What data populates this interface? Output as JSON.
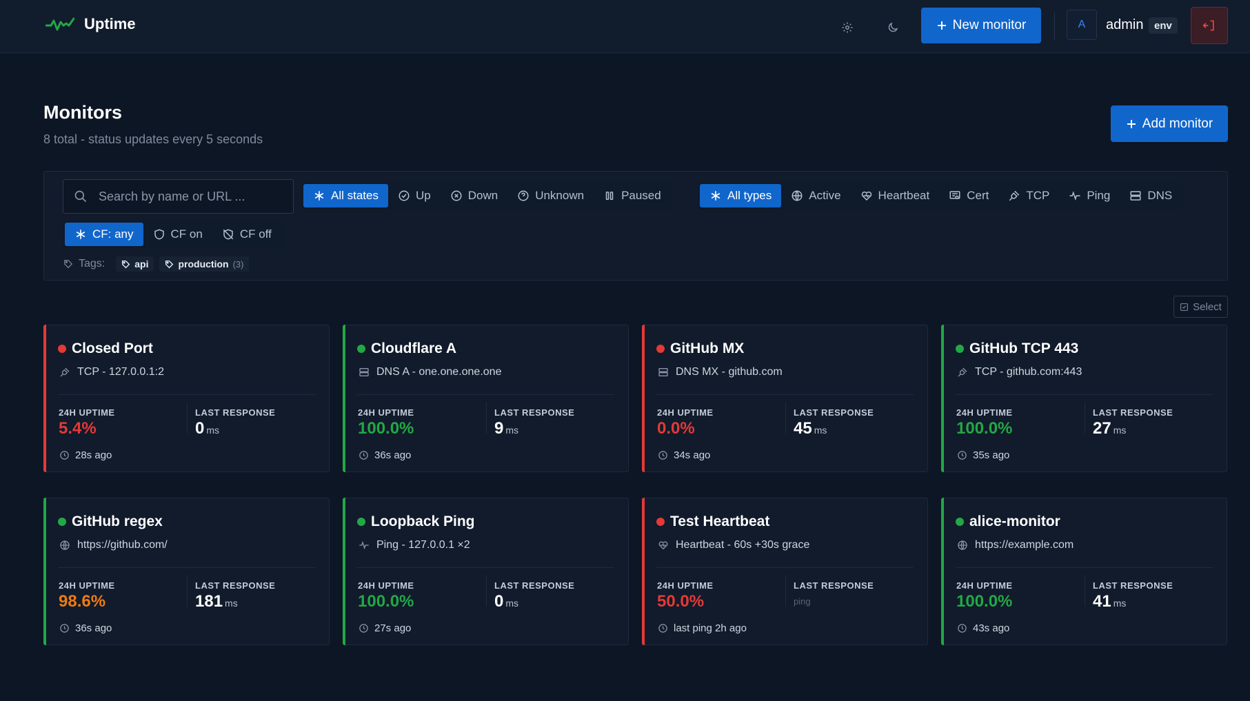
{
  "header": {
    "app_name": "Uptime",
    "new_monitor_label": "New monitor",
    "avatar_initial": "A",
    "username": "admin",
    "env_badge": "env"
  },
  "page": {
    "title": "Monitors",
    "subtitle": "8 total - status updates every 5 seconds",
    "add_monitor_label": "Add monitor"
  },
  "filters": {
    "search_placeholder": "Search by name or URL ...",
    "states": [
      "All states",
      "Up",
      "Down",
      "Unknown",
      "Paused"
    ],
    "types": [
      "All types",
      "Active",
      "Heartbeat",
      "Cert",
      "TCP",
      "Ping",
      "DNS"
    ],
    "cf": [
      "CF: any",
      "CF on",
      "CF off"
    ],
    "tags_label": "Tags:",
    "tags": [
      {
        "name": "api",
        "count": ""
      },
      {
        "name": "production",
        "count": "(3)"
      }
    ],
    "select_label": "Select"
  },
  "labels": {
    "uptime": "24H UPTIME",
    "last_response": "LAST RESPONSE"
  },
  "colors": {
    "up": "#22a845",
    "down": "#e53935",
    "warn": "#f07b12",
    "accent": "#1166cc"
  },
  "monitors": [
    {
      "name": "Closed Port",
      "status": "down",
      "icon": "tcp-icon",
      "target": "TCP - 127.0.0.1:2",
      "uptime": "5.4%",
      "uptime_level": "down",
      "response": "0",
      "response_unit": "ms",
      "checked": "28s ago"
    },
    {
      "name": "Cloudflare A",
      "status": "up",
      "icon": "dns-icon",
      "target": "DNS A - one.one.one.one",
      "uptime": "100.0%",
      "uptime_level": "up",
      "response": "9",
      "response_unit": "ms",
      "checked": "36s ago"
    },
    {
      "name": "GitHub MX",
      "status": "down",
      "icon": "dns-icon",
      "target": "DNS MX - github.com",
      "uptime": "0.0%",
      "uptime_level": "down",
      "response": "45",
      "response_unit": "ms",
      "checked": "34s ago"
    },
    {
      "name": "GitHub TCP 443",
      "status": "up",
      "icon": "tcp-icon",
      "target": "TCP - github.com:443",
      "uptime": "100.0%",
      "uptime_level": "up",
      "response": "27",
      "response_unit": "ms",
      "checked": "35s ago"
    },
    {
      "name": "GitHub regex",
      "status": "up",
      "icon": "globe-icon",
      "target": "https://github.com/",
      "uptime": "98.6%",
      "uptime_level": "warn",
      "response": "181",
      "response_unit": "ms",
      "checked": "36s ago"
    },
    {
      "name": "Loopback Ping",
      "status": "up",
      "icon": "ping-icon",
      "target": "Ping - 127.0.0.1 ×2",
      "uptime": "100.0%",
      "uptime_level": "up",
      "response": "0",
      "response_unit": "ms",
      "checked": "27s ago"
    },
    {
      "name": "Test Heartbeat",
      "status": "down",
      "icon": "heartbeat-icon",
      "target": "Heartbeat - 60s +30s grace",
      "uptime": "50.0%",
      "uptime_level": "down",
      "response": "",
      "response_unit": "",
      "response_note": "ping",
      "checked": "last ping 2h ago"
    },
    {
      "name": "alice-monitor",
      "status": "up",
      "icon": "globe-icon",
      "target": "https://example.com",
      "uptime": "100.0%",
      "uptime_level": "up",
      "response": "41",
      "response_unit": "ms",
      "checked": "43s ago"
    }
  ]
}
